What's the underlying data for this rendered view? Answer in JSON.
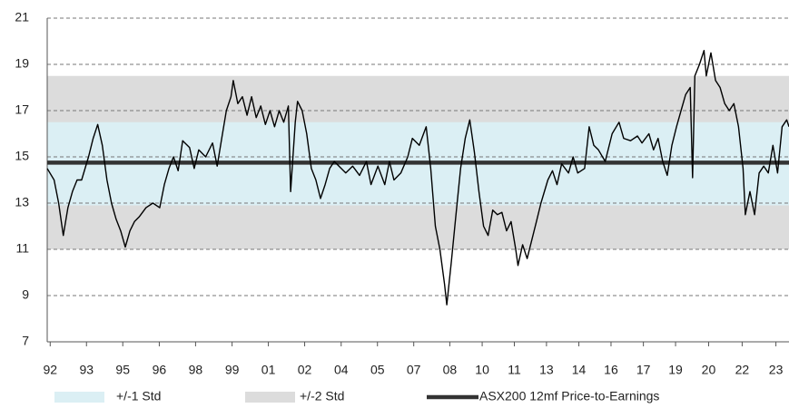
{
  "chart_data": {
    "type": "line",
    "bands": [
      {
        "name": "+/-1 Std",
        "color": "#dbeff4",
        "range": [
          12.9,
          16.5
        ]
      },
      {
        "name": "+/-2 Std",
        "color": "#dcdcdc",
        "range": [
          11,
          18.5
        ]
      }
    ],
    "average": 14.75,
    "average_color": "#333333",
    "series": [
      {
        "name": "ASX200 12mf Price-to-Earnings",
        "color": "#000000",
        "x": [
          1992.0,
          1992.3,
          1992.5,
          1992.7,
          1992.9,
          1993.1,
          1993.3,
          1993.5,
          1993.8,
          1994.0,
          1994.2,
          1994.4,
          1994.6,
          1994.8,
          1995.0,
          1995.2,
          1995.4,
          1995.6,
          1995.8,
          1996.0,
          1996.3,
          1996.6,
          1996.9,
          1997.1,
          1997.3,
          1997.5,
          1997.7,
          1997.9,
          1998.2,
          1998.4,
          1998.6,
          1998.9,
          1999.2,
          1999.4,
          1999.6,
          1999.8,
          2000.0,
          2000.1,
          2000.3,
          2000.5,
          2000.7,
          2000.9,
          2001.1,
          2001.3,
          2001.5,
          2001.7,
          2001.9,
          2002.1,
          2002.3,
          2002.5,
          2002.6,
          2002.8,
          2002.9,
          2003.1,
          2003.3,
          2003.5,
          2003.7,
          2003.9,
          2004.1,
          2004.3,
          2004.5,
          2004.8,
          2005.0,
          2005.3,
          2005.6,
          2005.9,
          2006.1,
          2006.4,
          2006.7,
          2006.9,
          2007.1,
          2007.4,
          2007.7,
          2007.9,
          2008.2,
          2008.5,
          2008.7,
          2008.9,
          2009.1,
          2009.3,
          2009.4,
          2009.6,
          2009.8,
          2010.0,
          2010.2,
          2010.4,
          2010.6,
          2010.8,
          2011.0,
          2011.2,
          2011.4,
          2011.6,
          2011.8,
          2012.0,
          2012.2,
          2012.4,
          2012.5,
          2012.7,
          2012.9,
          2013.1,
          2013.3,
          2013.5,
          2013.8,
          2014.0,
          2014.2,
          2014.4,
          2014.7,
          2014.9,
          2015.1,
          2015.4,
          2015.6,
          2015.8,
          2016.0,
          2016.3,
          2016.6,
          2016.9,
          2017.1,
          2017.4,
          2017.7,
          2017.9,
          2018.2,
          2018.4,
          2018.6,
          2018.8,
          2019.0,
          2019.2,
          2019.4,
          2019.6,
          2019.8,
          2020.0,
          2020.1,
          2020.2,
          2020.4,
          2020.6,
          2020.7,
          2020.9,
          2021.1,
          2021.3,
          2021.5,
          2021.7,
          2021.9,
          2022.1,
          2022.3,
          2022.4,
          2022.6,
          2022.8,
          2023.0,
          2023.2,
          2023.4,
          2023.6,
          2023.8,
          2024.0,
          2024.2,
          2024.3
        ],
        "values": [
          14.5,
          14.0,
          13.0,
          11.6,
          12.8,
          13.5,
          14.0,
          14.0,
          15.0,
          15.8,
          16.4,
          15.5,
          14.0,
          13.0,
          12.3,
          11.8,
          11.1,
          11.8,
          12.2,
          12.4,
          12.8,
          13.0,
          12.8,
          13.8,
          14.5,
          15.0,
          14.4,
          15.7,
          15.4,
          14.5,
          15.3,
          15.0,
          15.6,
          14.6,
          15.8,
          17.0,
          17.6,
          18.3,
          17.3,
          17.6,
          16.8,
          17.6,
          16.7,
          17.2,
          16.4,
          17.0,
          16.3,
          17.0,
          16.5,
          17.2,
          13.5,
          16.5,
          17.4,
          17.0,
          16.0,
          14.5,
          14.0,
          13.2,
          13.8,
          14.5,
          14.8,
          14.5,
          14.3,
          14.6,
          14.2,
          14.8,
          13.8,
          14.6,
          13.8,
          14.8,
          14.0,
          14.3,
          15.0,
          15.8,
          15.5,
          16.3,
          14.5,
          12.0,
          11.0,
          9.5,
          8.6,
          10.5,
          12.5,
          14.5,
          15.8,
          16.6,
          15.2,
          13.5,
          12.0,
          11.6,
          12.7,
          12.5,
          12.6,
          11.8,
          12.2,
          11.0,
          10.3,
          11.2,
          10.6,
          11.4,
          12.2,
          13.0,
          14.0,
          14.4,
          13.8,
          14.7,
          14.3,
          15.0,
          14.3,
          14.5,
          16.3,
          15.5,
          15.3,
          14.8,
          16.0,
          16.5,
          15.8,
          15.7,
          15.9,
          15.6,
          16.0,
          15.3,
          15.8,
          14.8,
          14.2,
          15.5,
          16.3,
          17.0,
          17.7,
          18.0,
          14.1,
          18.5,
          19.0,
          19.6,
          18.5,
          19.5,
          18.3,
          18.0,
          17.3,
          17.0,
          17.3,
          16.3,
          14.5,
          12.5,
          13.5,
          12.5,
          14.3,
          14.6,
          14.3,
          15.5,
          14.3,
          16.3,
          16.6,
          16.3
        ]
      }
    ],
    "xlim": [
      1992.0,
      2024.3
    ],
    "xticks": [
      {
        "value": 1992.13,
        "label": "92"
      },
      {
        "value": 1993.71,
        "label": "93"
      },
      {
        "value": 1995.29,
        "label": "95"
      },
      {
        "value": 1996.88,
        "label": "96"
      },
      {
        "value": 1998.46,
        "label": "98"
      },
      {
        "value": 2000.05,
        "label": "99"
      },
      {
        "value": 2001.63,
        "label": "01"
      },
      {
        "value": 2003.21,
        "label": "02"
      },
      {
        "value": 2004.8,
        "label": "04"
      },
      {
        "value": 2006.38,
        "label": "05"
      },
      {
        "value": 2007.96,
        "label": "07"
      },
      {
        "value": 2009.53,
        "label": "08"
      },
      {
        "value": 2010.94,
        "label": "10"
      },
      {
        "value": 2012.34,
        "label": "11"
      },
      {
        "value": 2013.74,
        "label": "13"
      },
      {
        "value": 2015.15,
        "label": "14"
      },
      {
        "value": 2016.55,
        "label": "16"
      },
      {
        "value": 2017.96,
        "label": "17"
      },
      {
        "value": 2019.36,
        "label": "19"
      },
      {
        "value": 2020.8,
        "label": "20"
      },
      {
        "value": 2022.26,
        "label": "22"
      },
      {
        "value": 2023.73,
        "label": "23"
      }
    ],
    "ylim": [
      7,
      21
    ],
    "yticks": [
      7,
      9,
      11,
      13,
      15,
      17,
      19,
      21
    ],
    "grid": true
  }
}
